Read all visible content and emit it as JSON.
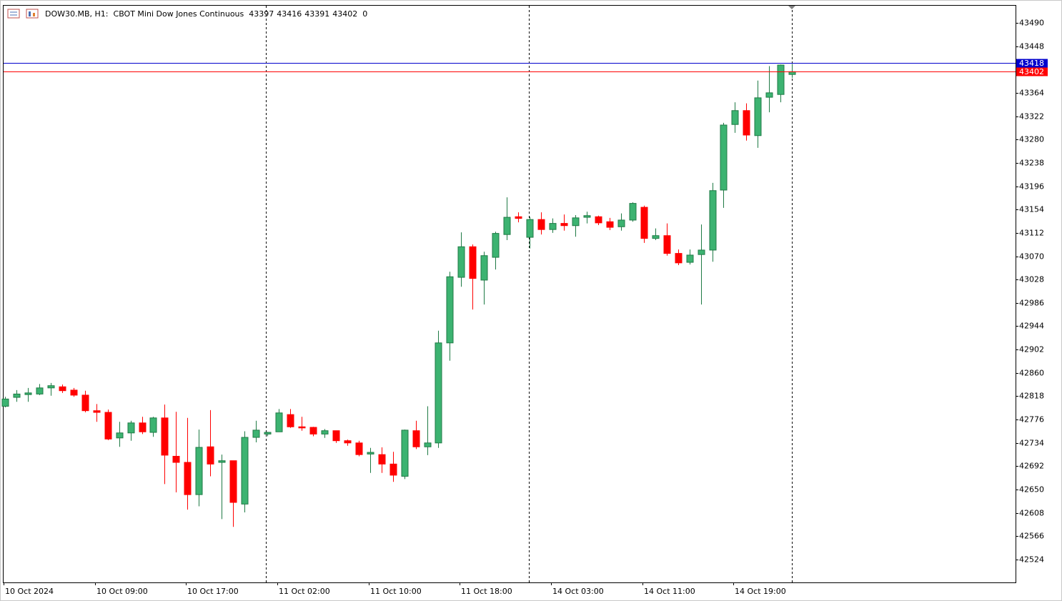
{
  "chart_data": {
    "type": "candlestick",
    "title": "DOW30.MB, H1:",
    "subtitle": "CBOT Mini Dow Jones Continuous",
    "header_value": 0,
    "up_color": "#3cb371",
    "down_color": "#ff0000",
    "categories": [
      "10 Oct 2024",
      null,
      null,
      null,
      null,
      null,
      null,
      null,
      "10 Oct 09:00",
      null,
      null,
      null,
      null,
      null,
      null,
      null,
      "10 Oct 17:00",
      null,
      null,
      null,
      null,
      null,
      null,
      null,
      "11 Oct 02:00",
      null,
      null,
      null,
      null,
      null,
      null,
      null,
      "11 Oct 10:00",
      null,
      null,
      null,
      null,
      null,
      null,
      null,
      "11 Oct 18:00",
      null,
      null,
      null,
      null,
      null,
      null,
      null,
      "14 Oct 03:00",
      null,
      null,
      null,
      null,
      null,
      null,
      null,
      "14 Oct 11:00",
      null,
      null,
      null,
      null,
      null,
      null,
      null,
      "14 Oct 19:00",
      null,
      null,
      null,
      null,
      null
    ],
    "open": [
      42800,
      42816,
      42821,
      42822,
      42833,
      42835,
      42829,
      42820,
      42792,
      42789,
      42743,
      42752,
      42770,
      42753,
      42779,
      42710,
      42699,
      42641,
      42727,
      42699,
      42702,
      42624,
      42744,
      42750,
      42754,
      42785,
      42763,
      42762,
      42750,
      42756,
      42738,
      42734,
      42714,
      42713,
      42696,
      42674,
      42756,
      42727,
      42734,
      42914,
      43032,
      43087,
      43027,
      43068,
      43109,
      43141,
      43104,
      43136,
      43118,
      43129,
      43125,
      43140,
      43141,
      43132,
      43123,
      43135,
      43158,
      43102,
      43107,
      43075,
      43059,
      43073,
      43081,
      43189,
      43307,
      43332,
      43287,
      43356,
      43361,
      43397
    ],
    "high": [
      42817,
      42829,
      42833,
      42840,
      42842,
      42839,
      42833,
      42828,
      42804,
      42794,
      42772,
      42774,
      42781,
      42781,
      42803,
      42790,
      42779,
      42758,
      42793,
      42713,
      42702,
      42755,
      42774,
      42754,
      42795,
      42795,
      42781,
      42763,
      42759,
      42756,
      42740,
      42738,
      42725,
      42726,
      42718,
      42758,
      42774,
      42800,
      42936,
      43042,
      43113,
      43091,
      43078,
      43114,
      43176,
      43149,
      43141,
      43149,
      43138,
      43145,
      43144,
      43150,
      43143,
      43139,
      43147,
      43167,
      43161,
      43120,
      43129,
      43082,
      43082,
      43127,
      43202,
      43310,
      43347,
      43345,
      43386,
      43412,
      43415,
      43416
    ],
    "low": [
      42798,
      42808,
      42808,
      42820,
      42819,
      42824,
      42817,
      42789,
      42772,
      42739,
      42727,
      42738,
      42750,
      42745,
      42660,
      42645,
      42614,
      42620,
      42674,
      42597,
      42583,
      42609,
      42735,
      42746,
      42754,
      42761,
      42756,
      42746,
      42743,
      42734,
      42729,
      42710,
      42680,
      42680,
      42664,
      42669,
      42723,
      42712,
      42725,
      42882,
      43015,
      42974,
      42983,
      43046,
      43099,
      43131,
      43084,
      43109,
      43112,
      43116,
      43105,
      43129,
      43126,
      43117,
      43116,
      43132,
      43094,
      43099,
      43071,
      43054,
      43055,
      42983,
      43060,
      43157,
      43292,
      43278,
      43265,
      43329,
      43347,
      43391
    ],
    "close": [
      42813,
      42822,
      42824,
      42833,
      42837,
      42828,
      42820,
      42792,
      42789,
      42741,
      42752,
      42770,
      42754,
      42779,
      42712,
      42699,
      42641,
      42726,
      42696,
      42702,
      42627,
      42744,
      42757,
      42753,
      42788,
      42763,
      42761,
      42750,
      42756,
      42738,
      42734,
      42713,
      42717,
      42696,
      42676,
      42757,
      42727,
      42734,
      42914,
      43033,
      43087,
      43030,
      43071,
      43111,
      43140,
      43138,
      43136,
      43118,
      43129,
      43125,
      43139,
      43143,
      43130,
      43122,
      43135,
      43165,
      43102,
      43107,
      43075,
      43058,
      43072,
      43081,
      43188,
      43306,
      43332,
      43288,
      43355,
      43364,
      43414,
      43402
    ],
    "price_lines": [
      {
        "value": 43418,
        "color": "#0000cd"
      },
      {
        "value": 43402,
        "color": "#ff0000"
      }
    ],
    "ylim": [
      42483,
      43522
    ],
    "yticks": [
      43490,
      43448,
      43364,
      43322,
      43280,
      43238,
      43196,
      43154,
      43112,
      43070,
      43028,
      42986,
      42944,
      42902,
      42860,
      42818,
      42776,
      42734,
      42692,
      42650,
      42608,
      42566,
      42524
    ]
  }
}
